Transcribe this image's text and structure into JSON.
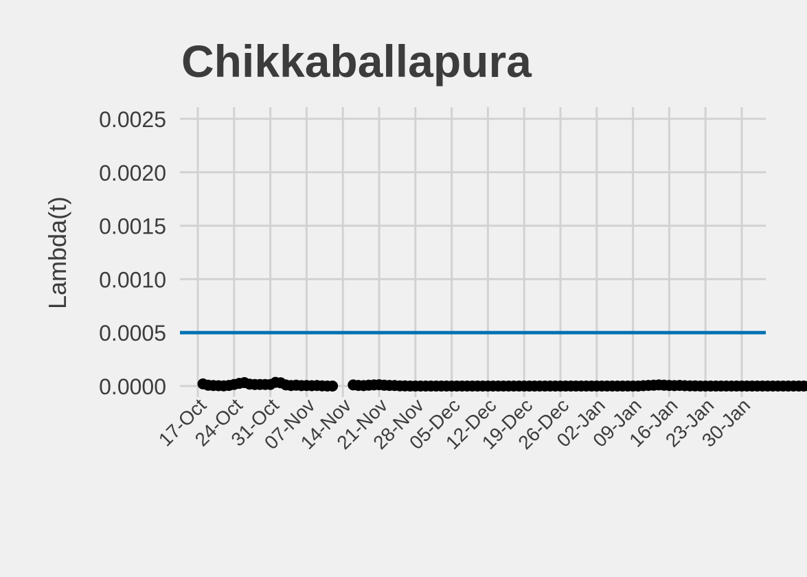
{
  "chart_data": {
    "type": "line",
    "title": "Chikkaballapura",
    "xlabel": "",
    "ylabel": "Lambda(t)",
    "ylim": [
      0,
      0.0025
    ],
    "y_ticks": [
      "0.0000",
      "0.0005",
      "0.0010",
      "0.0015",
      "0.0020",
      "0.0025"
    ],
    "x_ticks": [
      "17-Oct",
      "24-Oct",
      "31-Oct",
      "07-Nov",
      "14-Nov",
      "21-Nov",
      "28-Nov",
      "05-Dec",
      "12-Dec",
      "19-Dec",
      "26-Dec",
      "02-Jan",
      "09-Jan",
      "16-Jan",
      "23-Jan",
      "30-Jan"
    ],
    "grid": true,
    "reference_line": {
      "y": 0.0005,
      "color": "#0072b2"
    },
    "series_color": "#000000",
    "series": [
      {
        "segments": [
          {
            "start": "18-Oct",
            "values": [
              2e-05,
              8e-06,
              5e-06,
              3e-06,
              2e-06,
              6e-06,
              1.5e-05,
              2.5e-05,
              3.2e-05,
              1.8e-05,
              1.5e-05,
              1.5e-05,
              1.5e-05,
              1.5e-05,
              3.5e-05,
              3e-05,
              1e-05,
              5e-06,
              8e-06,
              4e-06,
              5e-06,
              3e-06,
              5e-06,
              2e-06,
              0.0,
              0.0
            ]
          },
          {
            "start": "16-Nov",
            "values": [
              1e-05,
              6e-06,
              4e-06,
              8e-06,
              1e-05,
              1.2e-05,
              8e-06,
              6e-06,
              5e-06,
              2e-06,
              1e-06,
              0.0,
              0.0,
              0.0,
              0.0,
              0.0,
              0.0,
              0.0,
              0.0,
              0.0,
              0.0,
              0.0,
              0.0,
              0.0,
              0.0,
              0.0,
              0.0,
              0.0,
              0.0,
              0.0,
              0.0,
              0.0,
              0.0,
              0.0,
              0.0,
              0.0,
              0.0,
              0.0,
              0.0,
              0.0,
              0.0,
              0.0,
              0.0,
              0.0,
              0.0,
              0.0,
              0.0,
              0.0,
              0.0,
              0.0,
              0.0,
              0.0,
              0.0,
              0.0,
              0.0,
              0.0,
              3e-06,
              6e-06,
              8e-06,
              1e-05,
              8e-06,
              6e-06,
              4e-06,
              6e-06,
              3e-06,
              2e-06,
              1e-06,
              0.0,
              0.0,
              0.0,
              0.0,
              0.0,
              0.0,
              0.0,
              0.0,
              0.0,
              0.0,
              0.0,
              0.0,
              0.0,
              0.0,
              0.0,
              0.0,
              0.0,
              0.0,
              0.0,
              0.0,
              0.0,
              0.0,
              0.0
            ]
          }
        ]
      }
    ]
  }
}
